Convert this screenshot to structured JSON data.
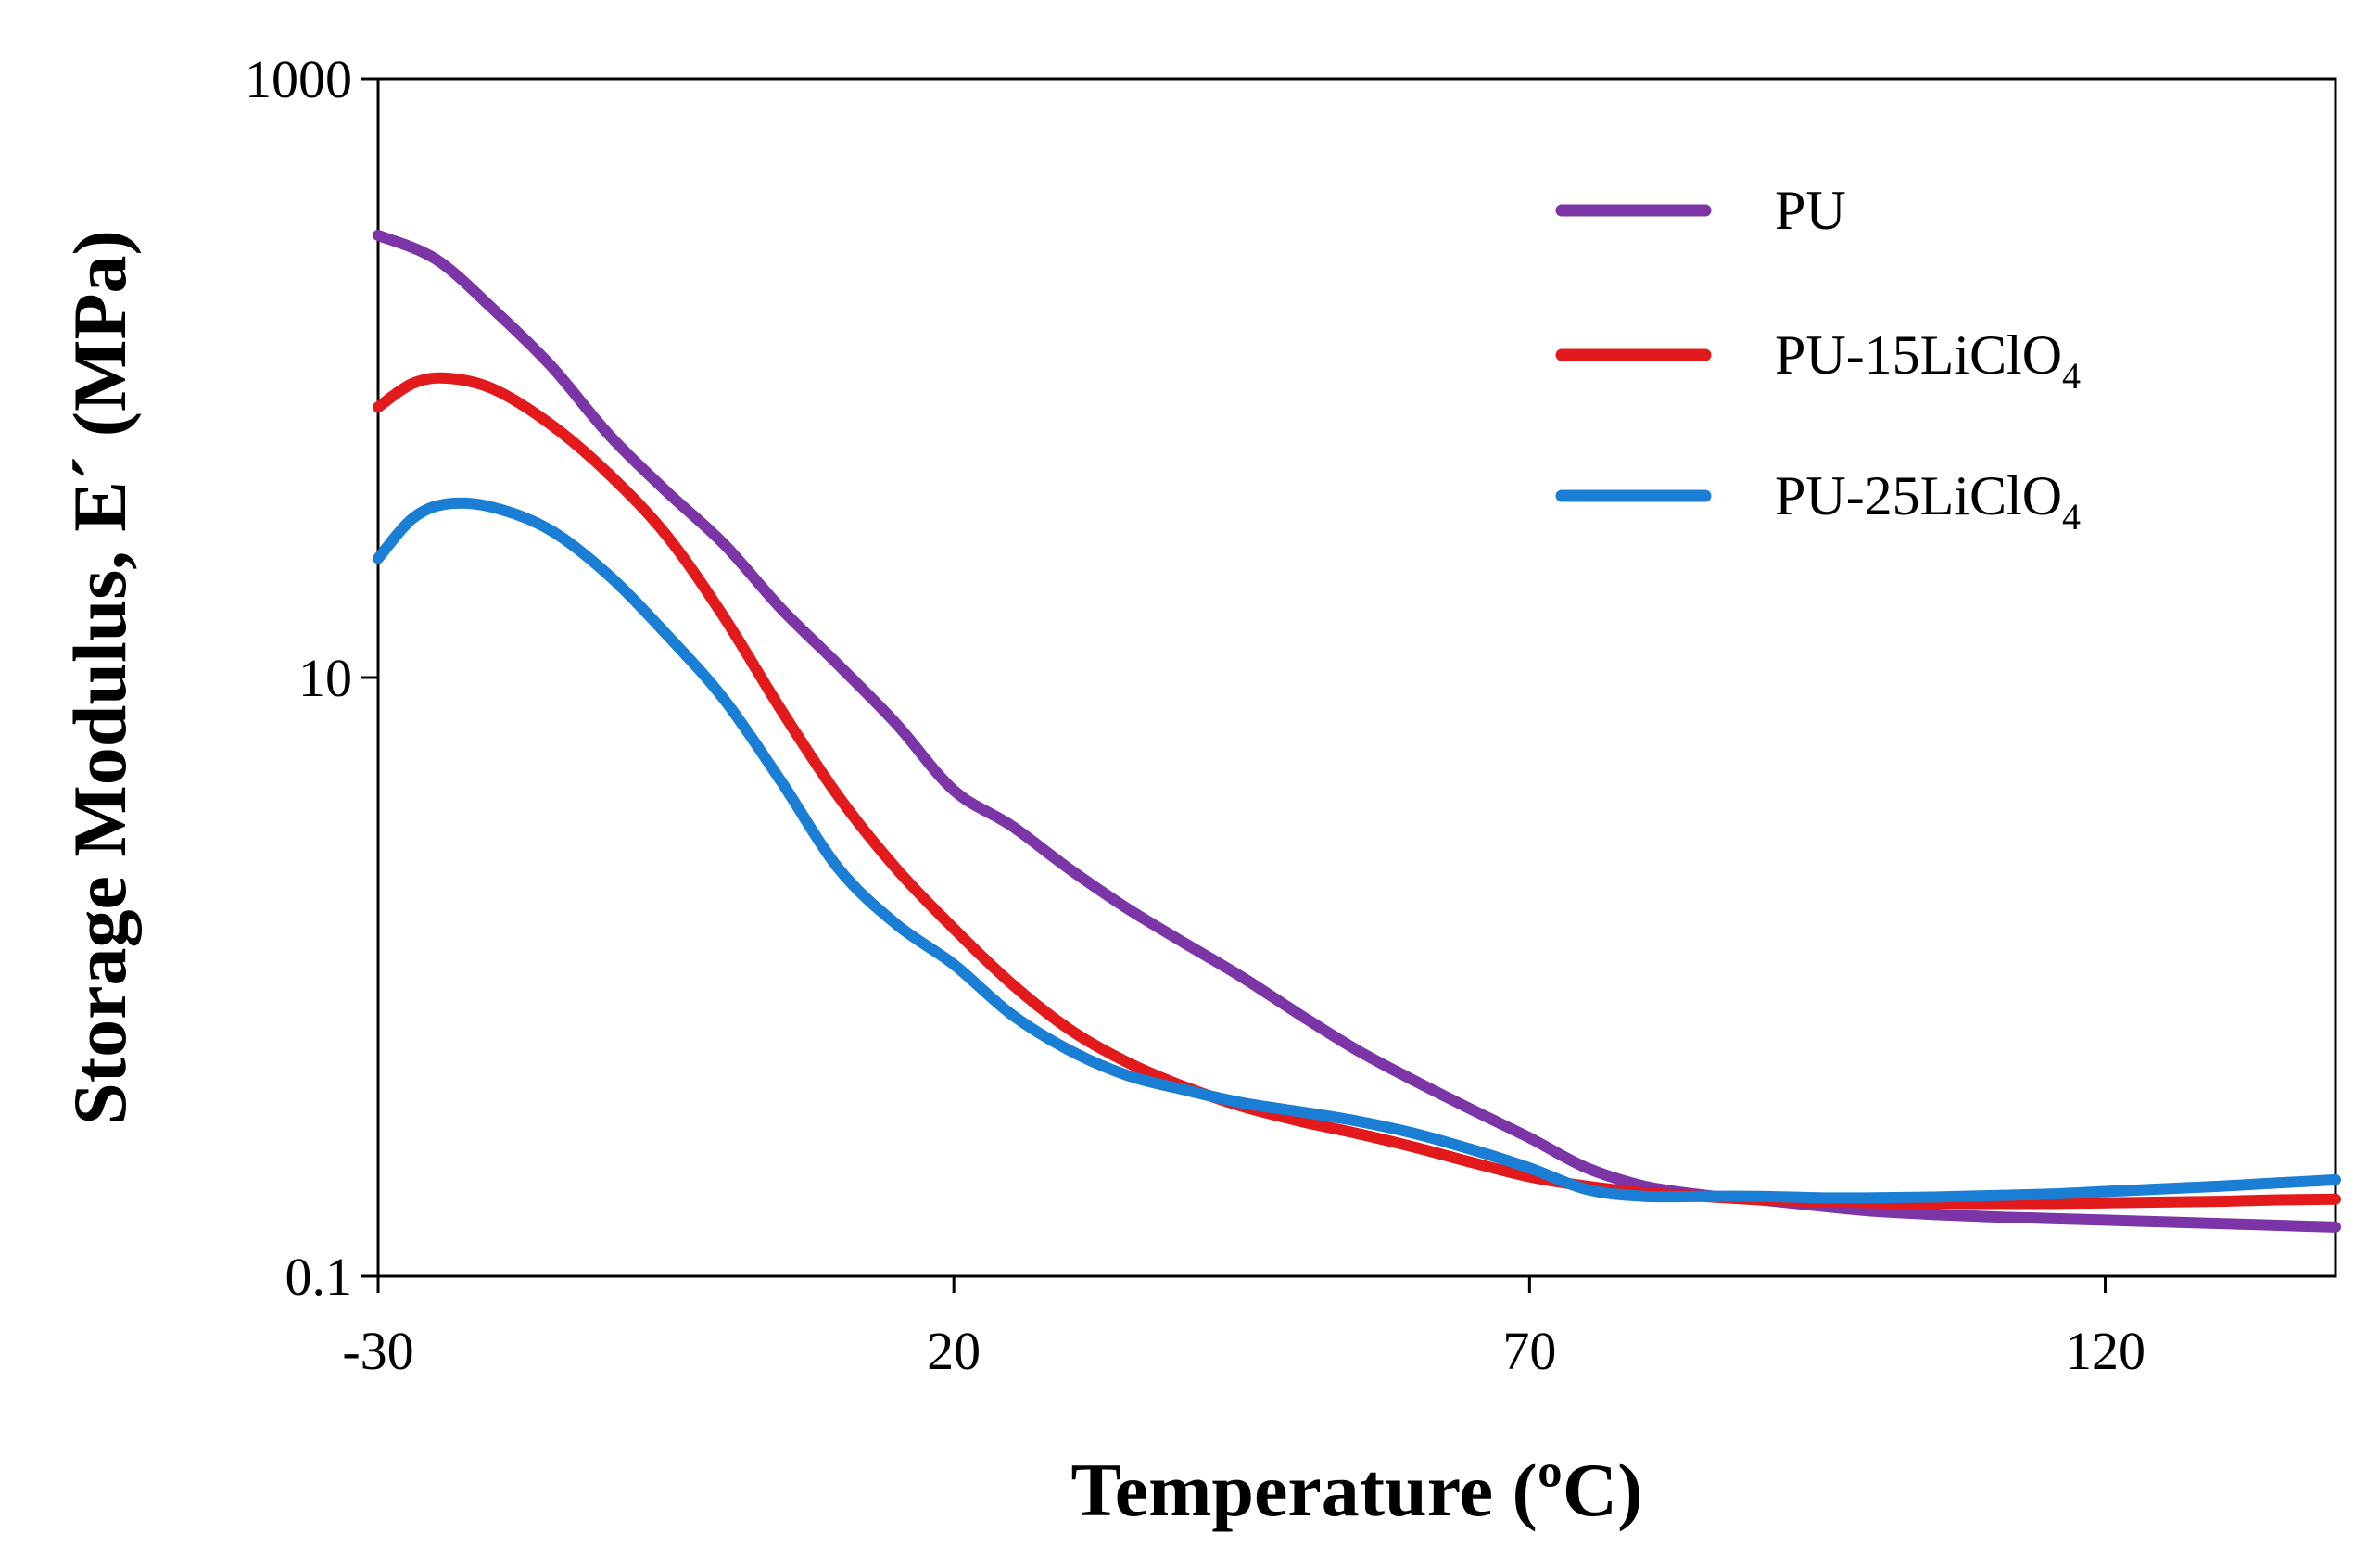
{
  "chart_data": {
    "type": "line",
    "title": "",
    "xlabel": "Temperature  (ºC)",
    "ylabel": "Storage Modulus, E´ (MPa)",
    "xlim": [
      -30,
      140
    ],
    "ylim": [
      0.1,
      1000
    ],
    "yscale": "log",
    "x_ticks": [
      -30,
      20,
      70,
      120
    ],
    "x_tick_labels": [
      "-30",
      "20",
      "70",
      "120"
    ],
    "y_ticks": [
      0.1,
      10,
      1000
    ],
    "y_tick_labels": [
      "0.1",
      "10",
      "1000"
    ],
    "legend_position": "top-right",
    "series": [
      {
        "name": "PU",
        "label_main": "PU",
        "label_sub": "",
        "color": "#7b35a6",
        "x": [
          -30,
          -25,
          -20,
          -15,
          -10,
          -5,
          0,
          5,
          10,
          15,
          20,
          25,
          30,
          35,
          40,
          45,
          50,
          55,
          60,
          65,
          70,
          75,
          80,
          85,
          90,
          95,
          100,
          105,
          110,
          115,
          120,
          125,
          130,
          135,
          140
        ],
        "y": [
          300,
          250,
          170,
          110,
          65,
          42,
          28,
          17,
          11,
          7,
          4.2,
          3.2,
          2.3,
          1.7,
          1.3,
          1.0,
          0.75,
          0.57,
          0.45,
          0.36,
          0.29,
          0.23,
          0.2,
          0.187,
          0.18,
          0.172,
          0.165,
          0.161,
          0.158,
          0.156,
          0.154,
          0.152,
          0.15,
          0.148,
          0.146
        ]
      },
      {
        "name": "PU-15LiClO4",
        "label_main": "PU-15LiClO",
        "label_sub": "4",
        "color": "#e31a1c",
        "x": [
          -30,
          -27,
          -24,
          -20,
          -15,
          -10,
          -5,
          0,
          5,
          10,
          15,
          20,
          25,
          30,
          35,
          40,
          45,
          50,
          55,
          60,
          65,
          70,
          75,
          80,
          85,
          90,
          95,
          100,
          105,
          110,
          115,
          120,
          125,
          130,
          135,
          140
        ],
        "y": [
          80,
          96,
          100,
          92,
          70,
          48,
          30,
          16,
          7.8,
          4.0,
          2.3,
          1.45,
          0.95,
          0.67,
          0.52,
          0.43,
          0.37,
          0.33,
          0.3,
          0.27,
          0.24,
          0.215,
          0.2,
          0.19,
          0.185,
          0.18,
          0.178,
          0.176,
          0.175,
          0.175,
          0.175,
          0.176,
          0.177,
          0.178,
          0.18,
          0.181
        ]
      },
      {
        "name": "PU-25LiClO4",
        "label_main": "PU-25LiClO",
        "label_sub": "4",
        "color": "#1a7fd4",
        "x": [
          -30,
          -27,
          -24,
          -20,
          -15,
          -10,
          -5,
          0,
          5,
          10,
          15,
          20,
          25,
          30,
          35,
          40,
          45,
          50,
          55,
          60,
          65,
          70,
          75,
          80,
          85,
          90,
          95,
          100,
          105,
          110,
          115,
          120,
          125,
          130,
          135,
          140
        ],
        "y": [
          25,
          34,
          38,
          37,
          31,
          22,
          14,
          8.5,
          4.5,
          2.3,
          1.5,
          1.1,
          0.75,
          0.57,
          0.47,
          0.42,
          0.38,
          0.355,
          0.33,
          0.3,
          0.265,
          0.23,
          0.195,
          0.185,
          0.185,
          0.185,
          0.183,
          0.183,
          0.184,
          0.186,
          0.188,
          0.192,
          0.196,
          0.2,
          0.205,
          0.21
        ]
      }
    ]
  }
}
